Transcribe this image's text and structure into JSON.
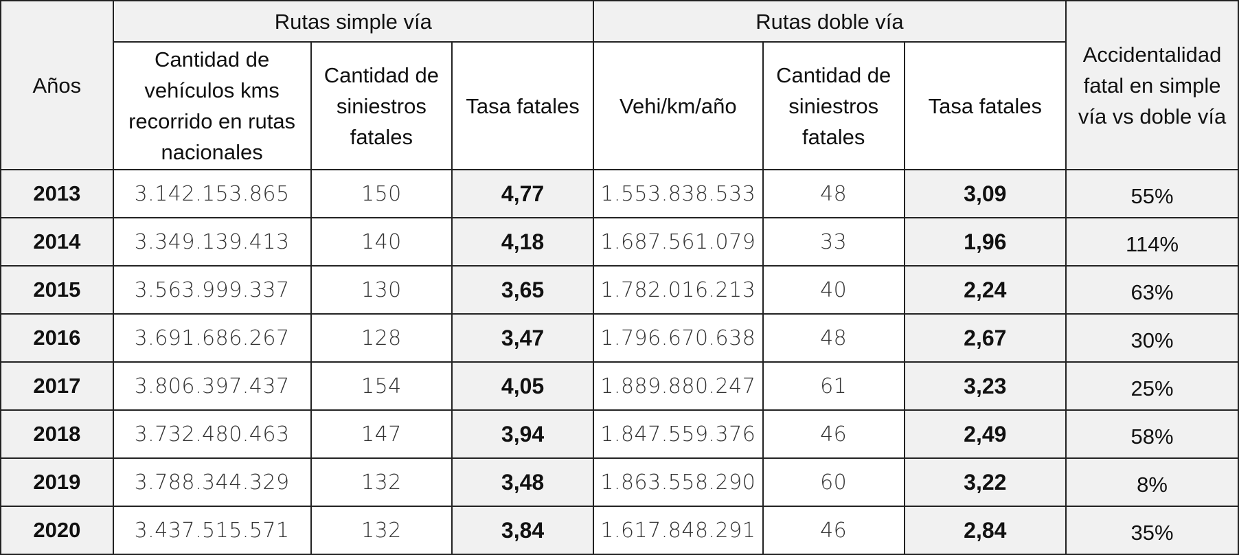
{
  "table": {
    "headers": {
      "years": "Años",
      "simple_group": "Rutas simple vía",
      "doble_group": "Rutas doble vía",
      "comparison": "Accidentalidad fatal en simple vía vs doble vía",
      "simple_cols": [
        "Cantidad de vehículos kms recorrido en rutas nacionales",
        "Cantidad de siniestros fatales",
        "Tasa fatales"
      ],
      "doble_cols": [
        "Vehi/km/año",
        "Cantidad de siniestros fatales",
        "Tasa fatales"
      ]
    },
    "rows": [
      [
        "2013",
        "3.142.153.865",
        "150",
        "4,77",
        "1.553.838.533",
        "48",
        "3,09",
        "55%"
      ],
      [
        "2014",
        "3.349.139.413",
        "140",
        "4,18",
        "1.687.561.079",
        "33",
        "1,96",
        "114%"
      ],
      [
        "2015",
        "3.563.999.337",
        "130",
        "3,65",
        "1.782.016.213",
        "40",
        "2,24",
        "63%"
      ],
      [
        "2016",
        "3.691.686.267",
        "128",
        "3,47",
        "1.796.670.638",
        "48",
        "2,67",
        "30%"
      ],
      [
        "2017",
        "3.806.397.437",
        "154",
        "4,05",
        "1.889.880.247",
        "61",
        "3,23",
        "25%"
      ],
      [
        "2018",
        "3.732.480.463",
        "147",
        "3,94",
        "1.847.559.376",
        "46",
        "2,49",
        "58%"
      ],
      [
        "2019",
        "3.788.344.329",
        "132",
        "3,48",
        "1.863.558.290",
        "60",
        "3,22",
        "8%"
      ],
      [
        "2020",
        "3.437.515.571",
        "132",
        "3,84",
        "1.617.848.291",
        "46",
        "2,84",
        "35%"
      ]
    ]
  }
}
